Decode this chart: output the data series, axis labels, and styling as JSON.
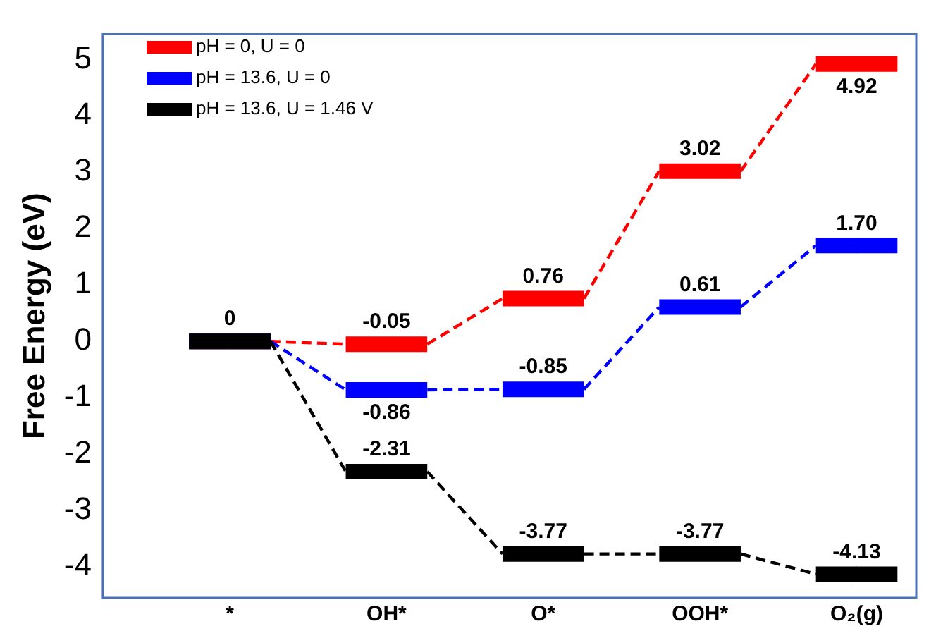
{
  "chart_data": {
    "type": "step",
    "ylabel": "Free Energy (eV)",
    "categories": [
      "*",
      "OH*",
      "O*",
      "OOH*",
      "O₂(g)"
    ],
    "series": [
      {
        "name": "pH = 0, U = 0",
        "color": "#ff0000",
        "values": [
          0,
          -0.05,
          0.76,
          3.02,
          4.92
        ],
        "value_labels": [
          null,
          "-0.05",
          "0.76",
          "3.02",
          "4.92"
        ]
      },
      {
        "name": "pH = 13.6, U = 0",
        "color": "#0000ff",
        "values": [
          0,
          -0.86,
          -0.85,
          0.61,
          1.7
        ],
        "value_labels": [
          null,
          "-0.86",
          "-0.85",
          "0.61",
          "1.70"
        ]
      },
      {
        "name": "pH = 13.6, U = 1.46 V",
        "color": "#000000",
        "values": [
          0,
          -2.31,
          -3.77,
          -3.77,
          -4.13
        ],
        "value_labels": [
          "0",
          "-2.31",
          "-3.77",
          "-3.77",
          "-4.13"
        ]
      }
    ],
    "ylim": [
      -4.55,
      5.45
    ],
    "yticks": [
      -4,
      -3,
      -2,
      -1,
      0,
      1,
      2,
      3,
      4,
      5
    ],
    "grid": false,
    "legend": "top left",
    "marker": "none",
    "line_style": "dashed"
  }
}
